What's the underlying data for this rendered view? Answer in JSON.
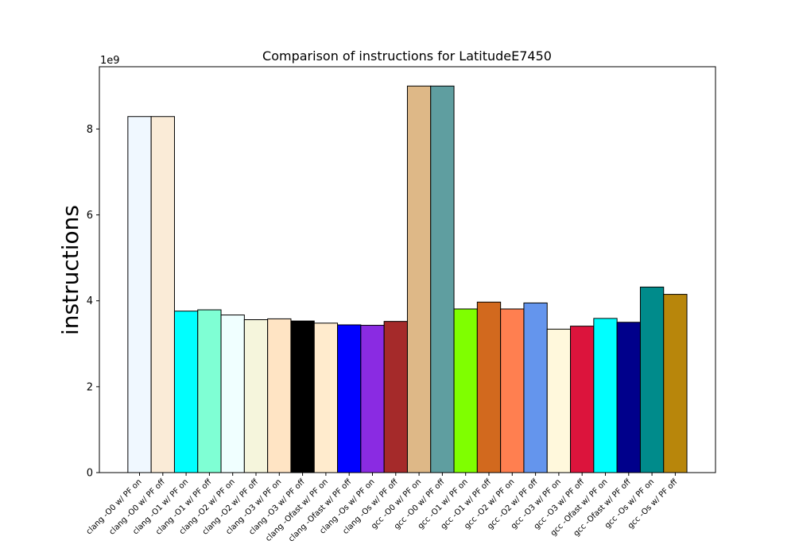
{
  "chart_data": {
    "type": "bar",
    "title": "Comparison of instructions for LatitudeE7450",
    "xlabel": "",
    "ylabel": "instructions",
    "y_exponent_label": "1e9",
    "ylim": [
      0,
      9.45
    ],
    "yticks": [
      0,
      2,
      4,
      6,
      8
    ],
    "ytick_labels": [
      "0",
      "2",
      "4",
      "6",
      "8"
    ],
    "grid": false,
    "categories": [
      "clang -O0 w/ PF on",
      "clang -O0 w/ PF off",
      "clang -O1 w/ PF on",
      "clang -O1 w/ PF off",
      "clang -O2 w/ PF on",
      "clang -O2 w/ PF off",
      "clang -O3 w/ PF on",
      "clang -O3 w/ PF off",
      "clang -Ofast w/ PF on",
      "clang -Ofast w/ PF off",
      "clang -Os w/ PF on",
      "clang -Os w/ PF off",
      "gcc -O0 w/ PF on",
      "gcc -O0 w/ PF off",
      "gcc -O1 w/ PF on",
      "gcc -O1 w/ PF off",
      "gcc -O2 w/ PF on",
      "gcc -O2 w/ PF off",
      "gcc -O3 w/ PF on",
      "gcc -O3 w/ PF off",
      "gcc -Ofast w/ PF on",
      "gcc -Ofast w/ PF off",
      "gcc -Os w/ PF on",
      "gcc -Os w/ PF off"
    ],
    "values": [
      8.29,
      8.29,
      3.76,
      3.79,
      3.67,
      3.56,
      3.58,
      3.53,
      3.48,
      3.44,
      3.43,
      3.52,
      9.0,
      9.0,
      3.81,
      3.97,
      3.81,
      3.95,
      3.34,
      3.41,
      3.59,
      3.5,
      4.32,
      4.15
    ],
    "colors": [
      "#f0f8ff",
      "#faebd7",
      "#00ffff",
      "#7fffd4",
      "#f0ffff",
      "#f5f5dc",
      "#ffe4c4",
      "#000000",
      "#ffebcd",
      "#0000ff",
      "#8a2be2",
      "#a52a2a",
      "#deb887",
      "#5f9ea0",
      "#7fff00",
      "#d2691e",
      "#ff7f50",
      "#6495ed",
      "#fff8dc",
      "#dc143c",
      "#00ffff",
      "#00008b",
      "#008b8b",
      "#b8860b"
    ]
  }
}
